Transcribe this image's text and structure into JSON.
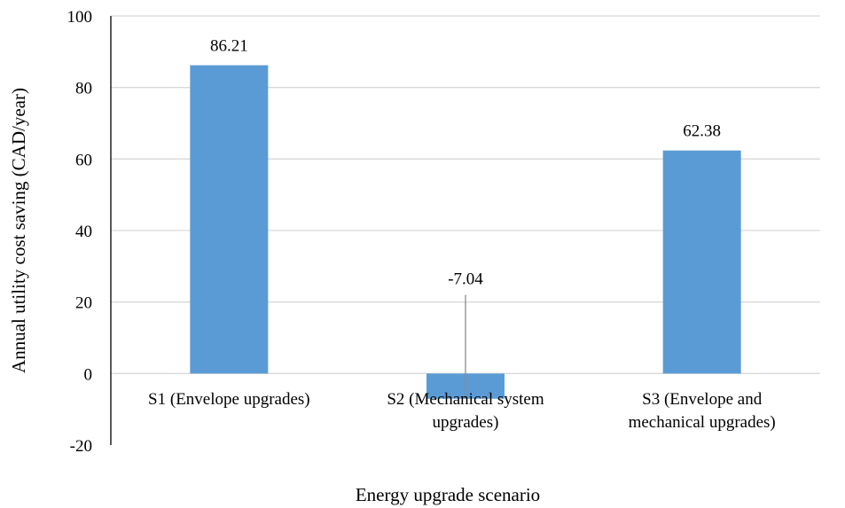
{
  "chart_data": {
    "type": "bar",
    "categories": [
      [
        "S1 (Envelope upgrades)"
      ],
      [
        "S2 (Mechanical system",
        "upgrades)"
      ],
      [
        "S3 (Envelope and",
        "mechanical upgrades)"
      ]
    ],
    "values": [
      86.21,
      -7.04,
      62.38
    ],
    "data_labels": [
      "86.21",
      "-7.04",
      "62.38"
    ],
    "xlabel": "Energy upgrade scenario",
    "ylabel": "Annual utility cost saving (CAD/year)",
    "ylim": [
      -20,
      100
    ],
    "yticks": [
      -20,
      0,
      20,
      40,
      60,
      80,
      100
    ],
    "grid": true,
    "legend": "none",
    "bar_color": "#5B9BD5",
    "grid_color": "#D9D9D9",
    "axis_color": "#000000"
  }
}
